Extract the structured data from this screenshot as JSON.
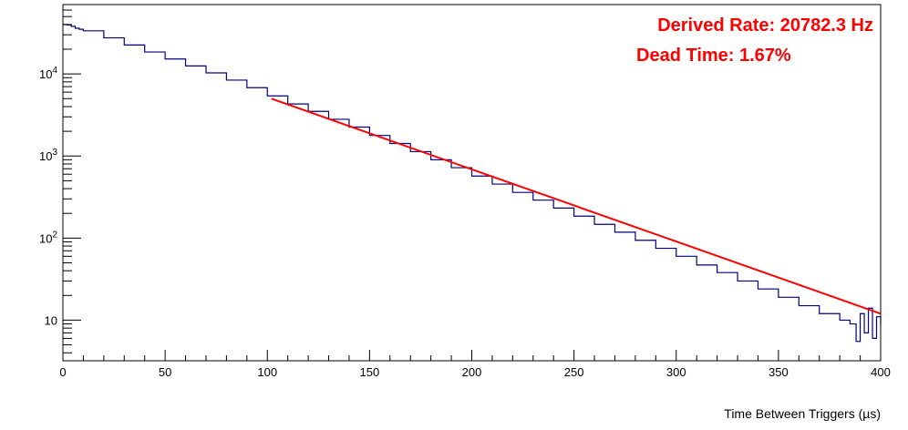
{
  "chart_data": {
    "type": "line",
    "title": "",
    "xlabel": "Time Between Triggers (µs)",
    "ylabel": "",
    "xlim": [
      0,
      400
    ],
    "ylim": [
      3.2,
      70000
    ],
    "yscale": "log",
    "grid": false,
    "x_ticks": [
      {
        "value": 0,
        "label": "0"
      },
      {
        "value": 50,
        "label": "50"
      },
      {
        "value": 100,
        "label": "100"
      },
      {
        "value": 150,
        "label": "150"
      },
      {
        "value": 200,
        "label": "200"
      },
      {
        "value": 250,
        "label": "250"
      },
      {
        "value": 300,
        "label": "300"
      },
      {
        "value": 350,
        "label": "350"
      },
      {
        "value": 400,
        "label": "400"
      }
    ],
    "y_ticks": [
      {
        "value": 10,
        "base": "10",
        "exp": ""
      },
      {
        "value": 100,
        "base": "10",
        "exp": "2"
      },
      {
        "value": 1000,
        "base": "10",
        "exp": "3"
      },
      {
        "value": 10000,
        "base": "10",
        "exp": "4"
      }
    ],
    "series": [
      {
        "kind": "histogram",
        "color": "#000080",
        "x": [
          0,
          2,
          4,
          6,
          8,
          10,
          20,
          30,
          40,
          50,
          60,
          70,
          80,
          90,
          100,
          110,
          120,
          130,
          140,
          150,
          160,
          170,
          180,
          190,
          200,
          210,
          220,
          230,
          240,
          250,
          260,
          270,
          280,
          290,
          300,
          310,
          320,
          330,
          340,
          350,
          360,
          370,
          380,
          385,
          388,
          390,
          392,
          394,
          396,
          398,
          400
        ],
        "values": [
          40000,
          39500,
          38000,
          36000,
          35000,
          33500,
          27500,
          22500,
          18500,
          15200,
          12500,
          10300,
          8400,
          6800,
          5400,
          4300,
          3500,
          2800,
          2250,
          1780,
          1420,
          1130,
          900,
          720,
          570,
          455,
          360,
          290,
          232,
          185,
          147,
          118,
          94,
          75,
          60,
          47,
          38,
          30,
          24,
          19,
          15,
          12,
          10,
          9,
          5.5,
          12,
          7,
          14,
          6,
          11,
          9
        ]
      },
      {
        "kind": "fit",
        "color": "#ff0000",
        "x": [
          102,
          400
        ],
        "values": [
          5000,
          12
        ]
      }
    ],
    "annotations": [
      {
        "text": "Derived Rate: 20782.3 Hz",
        "color": "#ff0000"
      },
      {
        "text": "Dead Time: 1.67%",
        "color": "#ff0000"
      }
    ]
  }
}
